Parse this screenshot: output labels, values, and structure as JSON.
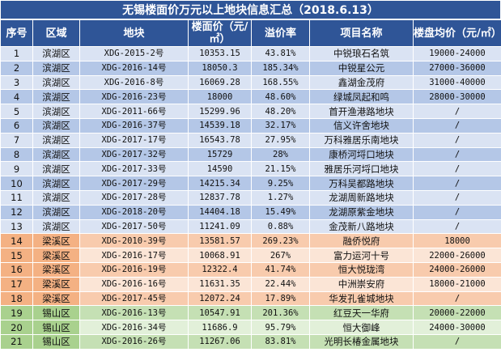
{
  "title": "无锡楼面价万元以上地块信息汇总（2018.6.13）",
  "headers": {
    "idx": "序号",
    "region": "区域",
    "plot": "地块",
    "floor_price": "楼面价（元/㎡）",
    "premium": "溢价率",
    "project": "项目名称",
    "avg_price": "楼盘均价（元/㎡）"
  },
  "rows": [
    {
      "idx": "1",
      "region": "滨湖区",
      "plot": "XDG-2015-2号",
      "floor_price": "10353.15",
      "premium": "43.81%",
      "project": "中锐琅石名筑",
      "avg_price": "19000-24000",
      "group": "binhu"
    },
    {
      "idx": "2",
      "region": "滨湖区",
      "plot": "XDG-2016-14号",
      "floor_price": "18050.3",
      "premium": "185.34%",
      "project": "中锐星公元",
      "avg_price": "27000-36000",
      "group": "binhu"
    },
    {
      "idx": "3",
      "region": "滨湖区",
      "plot": "XDG-2016-8号",
      "floor_price": "16069.28",
      "premium": "168.55%",
      "project": "鑫湖金茂府",
      "avg_price": "31000-40000",
      "group": "binhu"
    },
    {
      "idx": "4",
      "region": "滨湖区",
      "plot": "XDG-2016-23号",
      "floor_price": "18000",
      "premium": "48.60%",
      "project": "绿城凤起和鸣",
      "avg_price": "28000-30000",
      "group": "binhu"
    },
    {
      "idx": "5",
      "region": "滨湖区",
      "plot": "XDG-2011-66号",
      "floor_price": "15299.96",
      "premium": "48.20%",
      "project": "首开渔港路地块",
      "avg_price": "/",
      "group": "binhu"
    },
    {
      "idx": "6",
      "region": "滨湖区",
      "plot": "XDG-2016-37号",
      "floor_price": "14539.18",
      "premium": "32.17%",
      "project": "信义许舍地块",
      "avg_price": "/",
      "group": "binhu"
    },
    {
      "idx": "7",
      "region": "滨湖区",
      "plot": "XDG-2017-17号",
      "floor_price": "16543.78",
      "premium": "27.95%",
      "project": "万科雅居乐南地块",
      "avg_price": "/",
      "group": "binhu"
    },
    {
      "idx": "8",
      "region": "滨湖区",
      "plot": "XDG-2017-32号",
      "floor_price": "15729",
      "premium": "28%",
      "project": "康桥河埒口地块",
      "avg_price": "/",
      "group": "binhu"
    },
    {
      "idx": "9",
      "region": "滨湖区",
      "plot": "XDG-2017-33号",
      "floor_price": "14590",
      "premium": "21.15%",
      "project": "雅居乐河埒口地块",
      "avg_price": "/",
      "group": "binhu"
    },
    {
      "idx": "10",
      "region": "滨湖区",
      "plot": "XDG-2017-29号",
      "floor_price": "14215.34",
      "premium": "9.25%",
      "project": "万科吴都路地块",
      "avg_price": "/",
      "group": "binhu"
    },
    {
      "idx": "11",
      "region": "滨湖区",
      "plot": "XDG-2017-28号",
      "floor_price": "12837.78",
      "premium": "1.27%",
      "project": "龙湖周新路地块",
      "avg_price": "/",
      "group": "binhu"
    },
    {
      "idx": "12",
      "region": "滨湖区",
      "plot": "XDG-2018-20号",
      "floor_price": "14404.18",
      "premium": "15.49%",
      "project": "龙湖原紫金地块",
      "avg_price": "/",
      "group": "binhu"
    },
    {
      "idx": "13",
      "region": "滨湖区",
      "plot": "XDG-2017-50号",
      "floor_price": "11241.09",
      "premium": "0.88%",
      "project": "金茂新八路地块",
      "avg_price": "/",
      "group": "binhu"
    },
    {
      "idx": "14",
      "region": "梁溪区",
      "plot": "XDG-2010-39号",
      "floor_price": "13581.57",
      "premium": "269.23%",
      "project": "融侨悦府",
      "avg_price": "18000",
      "group": "liangxi"
    },
    {
      "idx": "15",
      "region": "梁溪区",
      "plot": "XDG-2016-17号",
      "floor_price": "10068.91",
      "premium": "267%",
      "project": "富力运河十号",
      "avg_price": "22000-26000",
      "group": "liangxi"
    },
    {
      "idx": "16",
      "region": "梁溪区",
      "plot": "XDG-2016-19号",
      "floor_price": "12322.4",
      "premium": "41.74%",
      "project": "恒大悦珑湾",
      "avg_price": "24000-26000",
      "group": "liangxi"
    },
    {
      "idx": "17",
      "region": "梁溪区",
      "plot": "XDG-2016-16号",
      "floor_price": "11631.35",
      "premium": "22.44%",
      "project": "中洲崇安府",
      "avg_price": "18000-21000",
      "group": "liangxi"
    },
    {
      "idx": "18",
      "region": "梁溪区",
      "plot": "XDG-2017-45号",
      "floor_price": "12072.24",
      "premium": "17.89%",
      "project": "华发孔雀城地块",
      "avg_price": "/",
      "group": "liangxi"
    },
    {
      "idx": "19",
      "region": "锡山区",
      "plot": "XDG-2016-13号",
      "floor_price": "10547.91",
      "premium": "201.36%",
      "project": "红豆天一华府",
      "avg_price": "20000-22000",
      "group": "xishan"
    },
    {
      "idx": "20",
      "region": "锡山区",
      "plot": "XDG-2016-34号",
      "floor_price": "11686.9",
      "premium": "95.79%",
      "project": "恒大御峰",
      "avg_price": "24000-30000",
      "group": "xishan"
    },
    {
      "idx": "21",
      "region": "锡山区",
      "plot": "XDG-2016-26号",
      "floor_price": "11267.06",
      "premium": "83.81%",
      "project": "光明长椿金属地块",
      "avg_price": "/",
      "group": "xishan"
    }
  ],
  "colors": {
    "header_bg": "#2f5597",
    "binhu_light": "#dae3f3",
    "binhu_dark": "#b4c7e7",
    "liangxi": "#f8cbad",
    "xishan": "#c5e0b4"
  }
}
